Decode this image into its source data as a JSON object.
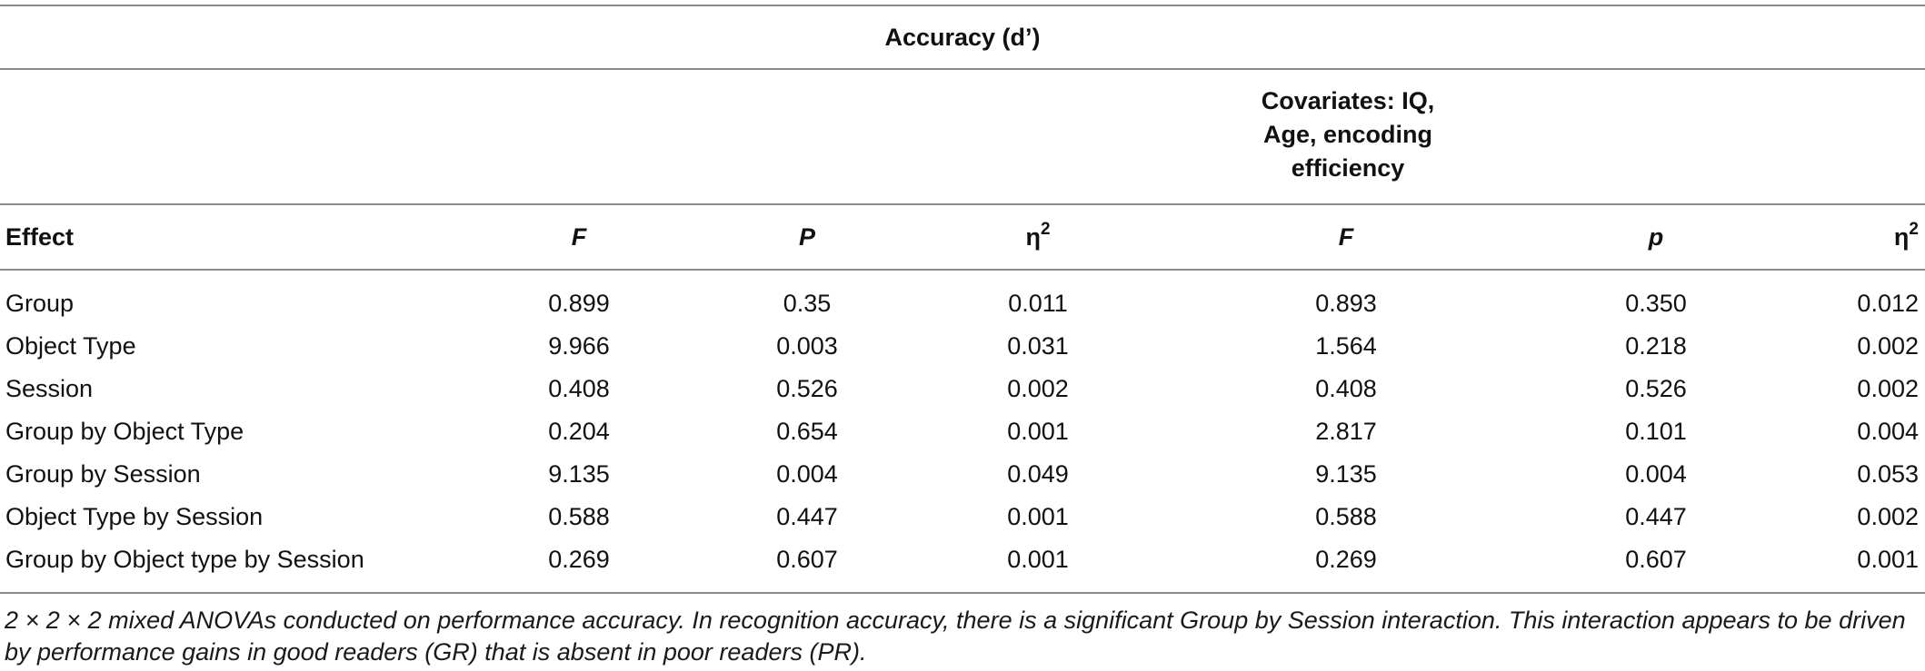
{
  "table": {
    "title": "Accuracy (d’)",
    "covariates_header": [
      "Covariates: IQ,",
      "Age, encoding",
      "efficiency"
    ],
    "columns": {
      "effect": "Effect",
      "F1": "F",
      "P1": "P",
      "eta1": "η",
      "eta1_sup": "2",
      "F2": "F",
      "p2": "p",
      "eta2": "η",
      "eta2_sup": "2"
    },
    "rows": [
      {
        "effect": "Group",
        "F1": "0.899",
        "P1": "0.35",
        "eta1": "0.011",
        "F2": "0.893",
        "p2": "0.350",
        "eta2": "0.012"
      },
      {
        "effect": "Object Type",
        "F1": "9.966",
        "P1": "0.003",
        "eta1": "0.031",
        "F2": "1.564",
        "p2": "0.218",
        "eta2": "0.002"
      },
      {
        "effect": "Session",
        "F1": "0.408",
        "P1": "0.526",
        "eta1": "0.002",
        "F2": "0.408",
        "p2": "0.526",
        "eta2": "0.002"
      },
      {
        "effect": "Group by Object Type",
        "F1": "0.204",
        "P1": "0.654",
        "eta1": "0.001",
        "F2": "2.817",
        "p2": "0.101",
        "eta2": "0.004"
      },
      {
        "effect": "Group by Session",
        "F1": "9.135",
        "P1": "0.004",
        "eta1": "0.049",
        "F2": "9.135",
        "p2": "0.004",
        "eta2": "0.053"
      },
      {
        "effect": "Object Type by Session",
        "F1": "0.588",
        "P1": "0.447",
        "eta1": "0.001",
        "F2": "0.588",
        "p2": "0.447",
        "eta2": "0.002"
      },
      {
        "effect": "Group by Object type by Session",
        "F1": "0.269",
        "P1": "0.607",
        "eta1": "0.001",
        "F2": "0.269",
        "p2": "0.607",
        "eta2": "0.001"
      }
    ],
    "footnote": "2 × 2 × 2 mixed ANOVAs conducted on performance accuracy. In recognition accuracy, there is a significant Group by Session interaction. This interaction appears to be driven by performance gains in good readers (GR) that is absent in poor readers (PR)."
  }
}
